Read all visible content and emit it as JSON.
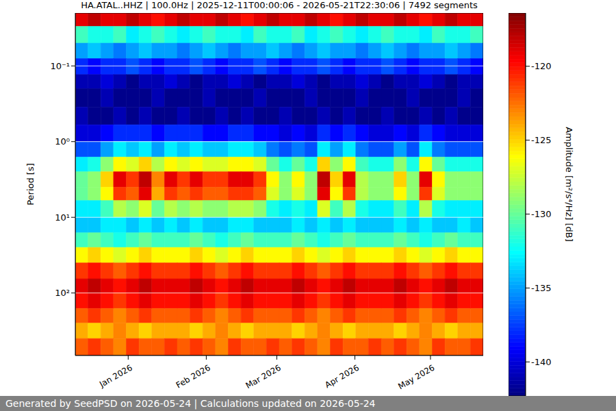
{
  "chart_data": {
    "type": "heatmap",
    "title": "HA.ATAL..HHZ | 100.0Hz | 2025-12-11T00:00:06 - 2026-05-21T22:30:06 | 7492 segments",
    "ylabel": "Period [s]",
    "log": "y",
    "grid": true,
    "xlim": [
      "2025-12-11T00:00:06",
      "2026-05-21T22:30:06"
    ],
    "xticks": [
      {
        "value": "2026-01-01",
        "label": "Jan 2026"
      },
      {
        "value": "2026-02-01",
        "label": "Feb 2026"
      },
      {
        "value": "2026-03-01",
        "label": "Mar 2026"
      },
      {
        "value": "2026-04-01",
        "label": "Apr 2026"
      },
      {
        "value": "2026-05-01",
        "label": "May 2026"
      }
    ],
    "ylim": [
      0.02,
      670
    ],
    "yticks": [
      {
        "value": 0.1,
        "label": "10⁻¹"
      },
      {
        "value": 1,
        "label": "10⁰"
      },
      {
        "value": 10,
        "label": "10¹"
      },
      {
        "value": 100,
        "label": "10²"
      }
    ],
    "y_edges": [
      0.02,
      0.03,
      0.05,
      0.08,
      0.13,
      0.2,
      0.35,
      0.6,
      1,
      1.6,
      2.5,
      4,
      6,
      10,
      16,
      25,
      40,
      65,
      100,
      160,
      250,
      400,
      670
    ],
    "z": [
      [
        -119,
        -118,
        -119,
        -119,
        -118,
        -119,
        -120,
        -119,
        -118,
        -119,
        -119,
        -118,
        -119,
        -120,
        -119,
        -118,
        -119,
        -119,
        -118,
        -119,
        -120,
        -119,
        -118,
        -119,
        -119,
        -118,
        -119,
        -120,
        -119,
        -118,
        -119,
        -119
      ],
      [
        -131,
        -132,
        -132,
        -131,
        -133,
        -132,
        -131,
        -132,
        -133,
        -132,
        -131,
        -132,
        -132,
        -133,
        -131,
        -132,
        -132,
        -131,
        -133,
        -132,
        -131,
        -132,
        -133,
        -132,
        -131,
        -132,
        -132,
        -133,
        -131,
        -132,
        -132,
        -131
      ],
      [
        -135,
        -134,
        -135,
        -136,
        -135,
        -134,
        -135,
        -135,
        -136,
        -135,
        -134,
        -135,
        -136,
        -135,
        -135,
        -134,
        -135,
        -136,
        -135,
        -134,
        -135,
        -135,
        -136,
        -135,
        -134,
        -135,
        -136,
        -135,
        -135,
        -134,
        -135,
        -136
      ],
      [
        -138,
        -139,
        -138,
        -138,
        -137,
        -138,
        -139,
        -138,
        -138,
        -137,
        -138,
        -139,
        -138,
        -138,
        -137,
        -138,
        -139,
        -138,
        -138,
        -137,
        -138,
        -139,
        -138,
        -138,
        -137,
        -138,
        -139,
        -138,
        -138,
        -137,
        -138,
        -139
      ],
      [
        -141,
        -141,
        -140,
        -141,
        -142,
        -141,
        -141,
        -140,
        -141,
        -142,
        -141,
        -141,
        -140,
        -141,
        -142,
        -141,
        -141,
        -140,
        -141,
        -142,
        -141,
        -141,
        -140,
        -141,
        -142,
        -141,
        -141,
        -140,
        -141,
        -142,
        -141,
        -141
      ],
      [
        -142,
        -142,
        -141,
        -142,
        -142,
        -142,
        -141,
        -142,
        -142,
        -142,
        -141,
        -142,
        -142,
        -142,
        -141,
        -142,
        -142,
        -142,
        -141,
        -142,
        -142,
        -142,
        -141,
        -142,
        -142,
        -142,
        -141,
        -142,
        -142,
        -142,
        -141,
        -142
      ],
      [
        -141,
        -142,
        -142,
        -141,
        -142,
        -141,
        -142,
        -142,
        -141,
        -142,
        -142,
        -141,
        -142,
        -141,
        -142,
        -142,
        -141,
        -142,
        -142,
        -141,
        -142,
        -141,
        -142,
        -142,
        -141,
        -142,
        -142,
        -141,
        -142,
        -141,
        -142,
        -142
      ],
      [
        -140,
        -140,
        -139,
        -138,
        -138,
        -138,
        -139,
        -138,
        -138,
        -138,
        -139,
        -139,
        -138,
        -138,
        -139,
        -139,
        -140,
        -139,
        -140,
        -138,
        -139,
        -138,
        -139,
        -140,
        -140,
        -139,
        -140,
        -138,
        -139,
        -140,
        -140,
        -140
      ],
      [
        -137,
        -137,
        -135,
        -133,
        -134,
        -133,
        -135,
        -133,
        -134,
        -133,
        -134,
        -134,
        -133,
        -133,
        -134,
        -136,
        -137,
        -136,
        -137,
        -133,
        -135,
        -133,
        -136,
        -137,
        -137,
        -135,
        -137,
        -133,
        -136,
        -137,
        -137,
        -137
      ],
      [
        -133,
        -132,
        -129,
        -126,
        -127,
        -125,
        -128,
        -126,
        -127,
        -126,
        -127,
        -127,
        -126,
        -126,
        -127,
        -130,
        -132,
        -130,
        -132,
        -125,
        -129,
        -126,
        -131,
        -132,
        -132,
        -129,
        -132,
        -126,
        -130,
        -132,
        -132,
        -132
      ],
      [
        -130,
        -129,
        -125,
        -119,
        -121,
        -118,
        -123,
        -119,
        -121,
        -119,
        -121,
        -121,
        -119,
        -119,
        -121,
        -126,
        -129,
        -126,
        -129,
        -118,
        -125,
        -119,
        -128,
        -129,
        -129,
        -125,
        -129,
        -119,
        -126,
        -129,
        -129,
        -129
      ],
      [
        -130,
        -129,
        -126,
        -121,
        -122,
        -119,
        -124,
        -121,
        -122,
        -121,
        -122,
        -122,
        -121,
        -121,
        -122,
        -127,
        -129,
        -127,
        -129,
        -119,
        -126,
        -121,
        -128,
        -129,
        -129,
        -126,
        -129,
        -121,
        -127,
        -129,
        -129,
        -129
      ],
      [
        -133,
        -133,
        -131,
        -128,
        -129,
        -127,
        -130,
        -128,
        -129,
        -128,
        -129,
        -129,
        -128,
        -128,
        -129,
        -132,
        -133,
        -132,
        -133,
        -127,
        -131,
        -128,
        -132,
        -133,
        -133,
        -131,
        -133,
        -128,
        -132,
        -133,
        -133,
        -133
      ],
      [
        -134,
        -134,
        -133,
        -133,
        -134,
        -133,
        -134,
        -133,
        -134,
        -133,
        -134,
        -134,
        -133,
        -133,
        -134,
        -134,
        -134,
        -133,
        -134,
        -133,
        -134,
        -133,
        -134,
        -134,
        -134,
        -133,
        -134,
        -133,
        -134,
        -134,
        -133,
        -134
      ],
      [
        -131,
        -130,
        -131,
        -132,
        -131,
        -130,
        -131,
        -131,
        -131,
        -130,
        -131,
        -132,
        -131,
        -130,
        -131,
        -131,
        -131,
        -130,
        -131,
        -132,
        -131,
        -130,
        -131,
        -131,
        -131,
        -130,
        -131,
        -132,
        -131,
        -130,
        -131,
        -131
      ],
      [
        -126,
        -125,
        -126,
        -127,
        -126,
        -125,
        -126,
        -126,
        -126,
        -125,
        -126,
        -127,
        -126,
        -125,
        -126,
        -126,
        -126,
        -125,
        -126,
        -127,
        -126,
        -125,
        -126,
        -126,
        -126,
        -125,
        -126,
        -127,
        -126,
        -125,
        -126,
        -126
      ],
      [
        -121,
        -120,
        -121,
        -122,
        -121,
        -120,
        -121,
        -121,
        -121,
        -120,
        -121,
        -122,
        -121,
        -120,
        -121,
        -121,
        -121,
        -120,
        -121,
        -122,
        -121,
        -120,
        -121,
        -121,
        -121,
        -120,
        -121,
        -122,
        -121,
        -120,
        -121,
        -121
      ],
      [
        -119,
        -118,
        -119,
        -120,
        -119,
        -118,
        -119,
        -119,
        -119,
        -118,
        -119,
        -120,
        -119,
        -118,
        -119,
        -119,
        -119,
        -118,
        -119,
        -120,
        -119,
        -118,
        -119,
        -119,
        -119,
        -118,
        -119,
        -120,
        -119,
        -118,
        -119,
        -119
      ],
      [
        -120,
        -119,
        -120,
        -121,
        -120,
        -119,
        -120,
        -120,
        -120,
        -119,
        -120,
        -121,
        -120,
        -119,
        -120,
        -120,
        -120,
        -119,
        -120,
        -121,
        -120,
        -119,
        -120,
        -120,
        -120,
        -119,
        -120,
        -121,
        -120,
        -119,
        -120,
        -120
      ],
      [
        -122,
        -121,
        -122,
        -123,
        -122,
        -121,
        -122,
        -122,
        -122,
        -121,
        -122,
        -123,
        -122,
        -121,
        -122,
        -122,
        -122,
        -121,
        -122,
        -123,
        -122,
        -121,
        -122,
        -122,
        -122,
        -121,
        -122,
        -123,
        -122,
        -121,
        -122,
        -122
      ],
      [
        -124,
        -125,
        -124,
        -123,
        -124,
        -125,
        -124,
        -124,
        -124,
        -125,
        -124,
        -123,
        -124,
        -125,
        -124,
        -124,
        -124,
        -125,
        -124,
        -123,
        -124,
        -125,
        -124,
        -124,
        -124,
        -125,
        -124,
        -123,
        -124,
        -125,
        -124,
        -124
      ],
      [
        -122,
        -121,
        -122,
        -123,
        -121,
        -122,
        -122,
        -121,
        -122,
        -121,
        -122,
        -123,
        -121,
        -122,
        -122,
        -121,
        -122,
        -121,
        -122,
        -123,
        -121,
        -122,
        -122,
        -121,
        -122,
        -121,
        -122,
        -123,
        -121,
        -122,
        -122,
        -121
      ]
    ],
    "colorbar": {
      "label": "Amplitude [m²/s⁴/Hz] [dB]",
      "lim": [
        -142.3,
        -116.4
      ],
      "ticks": [
        -140,
        -135,
        -130,
        -125,
        -120
      ]
    }
  },
  "footer": "Generated by SeedPSD on 2026-05-24 | Calculations updated on 2026-05-24"
}
